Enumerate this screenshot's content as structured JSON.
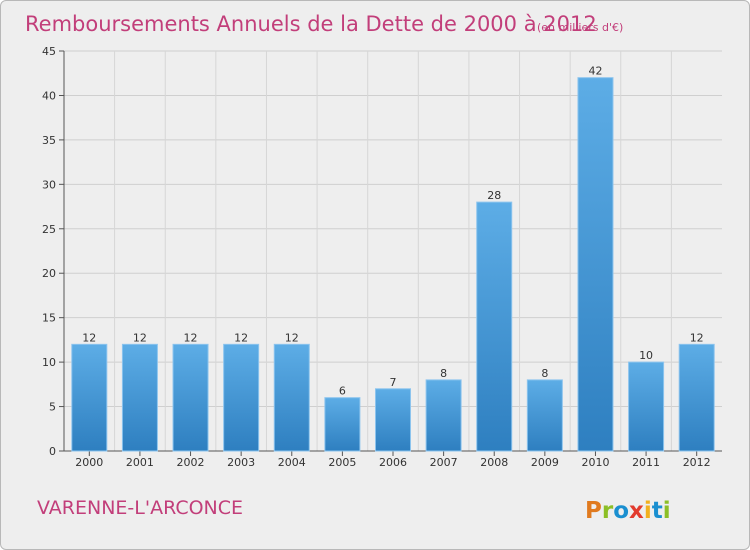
{
  "chart_data": {
    "type": "bar",
    "title": "Remboursements Annuels de la Dette de 2000 à 2012",
    "subtitle": "(en milliers d'€)",
    "categories": [
      "2000",
      "2001",
      "2002",
      "2003",
      "2004",
      "2005",
      "2006",
      "2007",
      "2008",
      "2009",
      "2010",
      "2011",
      "2012"
    ],
    "values": [
      12,
      12,
      12,
      12,
      12,
      6,
      7,
      8,
      28,
      8,
      42,
      10,
      12
    ],
    "data_labels": [
      "12",
      "12",
      "12",
      "12",
      "12",
      "6",
      "7",
      "8",
      "28",
      "8",
      "42",
      "10",
      "12"
    ],
    "ylim": [
      0,
      45
    ],
    "yticks": [
      0,
      5,
      10,
      15,
      20,
      25,
      30,
      35,
      40,
      45
    ],
    "ytick_labels": [
      "0",
      "5",
      "10",
      "15",
      "20",
      "25",
      "30",
      "35",
      "40",
      "45"
    ],
    "grid": true,
    "bar_color": "#4a9ad8"
  },
  "footer": {
    "commune": "VARENNE-L'ARCONCE",
    "brand": "Proxiti",
    "brand_colors": [
      "#e07a1f",
      "#8cbf26",
      "#1a8fd0",
      "#e23b2e",
      "#f2b01e",
      "#1a8fd0",
      "#8cbf26"
    ]
  }
}
